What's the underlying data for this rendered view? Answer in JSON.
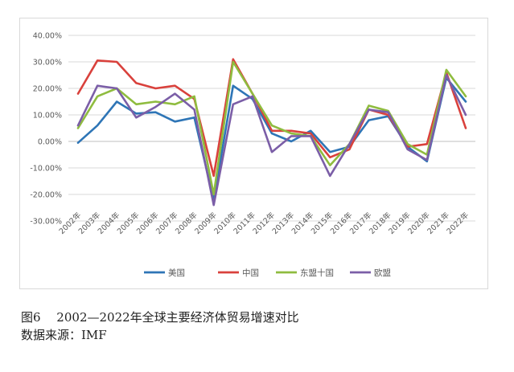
{
  "chart_data": {
    "type": "line",
    "title": "",
    "xlabel": "",
    "ylabel": "",
    "ylim": [
      -30,
      40
    ],
    "y_ticks": [
      "40.00%",
      "30.00%",
      "20.00%",
      "10.00%",
      "0.00%",
      "-10.00%",
      "-20.00%",
      "-30.00%"
    ],
    "y_tick_values": [
      40,
      30,
      20,
      10,
      0,
      -10,
      -20,
      -30
    ],
    "categories": [
      "2002年",
      "2003年",
      "2004年",
      "2005年",
      "2006年",
      "2007年",
      "2008年",
      "2009年",
      "2010年",
      "2011年",
      "2012年",
      "2013年",
      "2014年",
      "2015年",
      "2016年",
      "2017年",
      "2018年",
      "2019年",
      "2020年",
      "2021年",
      "2022年"
    ],
    "grid": "horizontal",
    "legend_position": "bottom",
    "series": [
      {
        "name": "美国",
        "color": "#2e75b6",
        "values": [
          -0.5,
          6,
          15,
          10.5,
          11,
          7.5,
          9,
          -22,
          21,
          16,
          3,
          0,
          4,
          -4,
          -2,
          8,
          9.5,
          -2,
          -7.5,
          24,
          15
        ]
      },
      {
        "name": "中国",
        "color": "#d9413c",
        "values": [
          18,
          30.5,
          30,
          22,
          20,
          21,
          16,
          -13,
          31,
          18,
          4,
          4,
          3,
          -6,
          -3,
          12,
          10,
          -2,
          -1,
          26,
          5
        ]
      },
      {
        "name": "东盟十国",
        "color": "#8fbc3f",
        "values": [
          5,
          17,
          20,
          14,
          15,
          14,
          17,
          -20,
          30,
          18,
          6,
          3,
          2,
          -9,
          -1,
          13.5,
          11.5,
          -1,
          -5,
          27,
          17
        ]
      },
      {
        "name": "欧盟",
        "color": "#7b5ea7",
        "values": [
          6,
          21,
          20,
          9,
          13,
          18,
          12,
          -24,
          14,
          17,
          -4,
          2,
          2,
          -13,
          -1,
          12,
          11,
          -3,
          -7,
          25,
          10
        ]
      }
    ]
  },
  "caption": {
    "title": "图6　 2002—2022年全球主要经济体贸易增速对比",
    "source": "数据来源：IMF"
  }
}
